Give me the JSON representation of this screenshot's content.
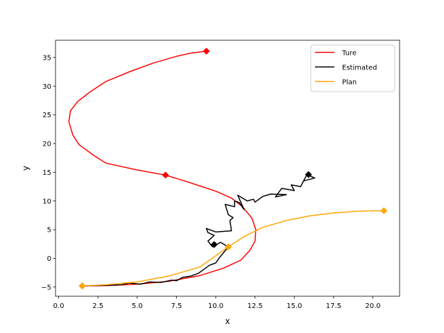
{
  "chart_data": {
    "type": "line",
    "xlabel": "x",
    "ylabel": "y",
    "xlim": [
      -0.2,
      21.7
    ],
    "ylim": [
      -6.6,
      38.0
    ],
    "xticks": [
      0.0,
      2.5,
      5.0,
      7.5,
      10.0,
      12.5,
      15.0,
      17.5,
      20.0
    ],
    "xtick_labels": [
      "0.0",
      "2.5",
      "5.0",
      "7.5",
      "10.0",
      "12.5",
      "15.0",
      "17.5",
      "20.0"
    ],
    "yticks": [
      -5,
      0,
      5,
      10,
      15,
      20,
      25,
      30,
      35
    ],
    "ytick_labels": [
      "−5",
      "0",
      "5",
      "10",
      "15",
      "20",
      "25",
      "30",
      "35"
    ],
    "grid": false,
    "legend_position": "top-right",
    "series": [
      {
        "name": "Ture",
        "color": "#ff0000",
        "points": [
          [
            1.5,
            -4.8
          ],
          [
            3.0,
            -4.75
          ],
          [
            5.0,
            -4.5
          ],
          [
            7.0,
            -4.0
          ],
          [
            9.0,
            -3.0
          ],
          [
            10.5,
            -1.7
          ],
          [
            11.6,
            -0.3
          ],
          [
            12.2,
            1.5
          ],
          [
            12.5,
            3.0
          ],
          [
            12.55,
            5.0
          ],
          [
            12.3,
            7.0
          ],
          [
            11.7,
            9.0
          ],
          [
            11.0,
            10.5
          ],
          [
            10.0,
            11.7
          ],
          [
            9.0,
            12.6
          ],
          [
            8.0,
            13.5
          ],
          [
            6.8,
            14.5
          ],
          [
            5.0,
            15.4
          ],
          [
            3.0,
            16.6
          ],
          [
            2.2,
            18.0
          ],
          [
            1.3,
            19.8
          ],
          [
            0.9,
            21.5
          ],
          [
            0.65,
            23.8
          ],
          [
            0.75,
            25.7
          ],
          [
            1.2,
            27.3
          ],
          [
            2.0,
            29.0
          ],
          [
            3.0,
            30.8
          ],
          [
            4.5,
            32.5
          ],
          [
            6.0,
            34.0
          ],
          [
            7.5,
            35.2
          ],
          [
            8.5,
            35.8
          ],
          [
            9.4,
            36.1
          ]
        ],
        "markers": [
          [
            1.5,
            -4.8
          ],
          [
            6.8,
            14.5
          ],
          [
            9.4,
            36.1
          ]
        ]
      },
      {
        "name": "Estimated",
        "color": "#000000",
        "points": [
          [
            1.5,
            -4.8
          ],
          [
            3.0,
            -4.7
          ],
          [
            4.0,
            -4.6
          ],
          [
            4.5,
            -4.3
          ],
          [
            5.2,
            -4.5
          ],
          [
            5.8,
            -4.1
          ],
          [
            6.5,
            -4.2
          ],
          [
            7.2,
            -3.8
          ],
          [
            7.5,
            -3.9
          ],
          [
            7.9,
            -3.3
          ],
          [
            8.4,
            -3.1
          ],
          [
            8.9,
            -2.6
          ],
          [
            9.2,
            -2.0
          ],
          [
            9.6,
            -1.2
          ],
          [
            10.0,
            -0.8
          ],
          [
            10.2,
            0.0
          ],
          [
            10.5,
            1.0
          ],
          [
            10.8,
            2.0
          ],
          [
            10.3,
            2.8
          ],
          [
            9.8,
            2.0
          ],
          [
            9.5,
            3.0
          ],
          [
            9.9,
            4.0
          ],
          [
            9.5,
            4.5
          ],
          [
            9.4,
            5.2
          ],
          [
            10.0,
            4.6
          ],
          [
            11.0,
            4.8
          ],
          [
            10.9,
            6.6
          ],
          [
            11.1,
            7.1
          ],
          [
            10.8,
            7.6
          ],
          [
            10.6,
            9.4
          ],
          [
            11.2,
            9.0
          ],
          [
            11.2,
            10.0
          ],
          [
            11.5,
            9.7
          ],
          [
            11.8,
            8.5
          ],
          [
            11.4,
            11.0
          ],
          [
            12.0,
            10.0
          ],
          [
            12.4,
            10.3
          ],
          [
            12.5,
            9.8
          ],
          [
            13.0,
            10.8
          ],
          [
            13.5,
            11.2
          ],
          [
            14.5,
            11.1
          ],
          [
            13.8,
            10.7
          ],
          [
            14.2,
            12.2
          ],
          [
            15.0,
            11.8
          ],
          [
            14.8,
            12.8
          ],
          [
            15.4,
            12.5
          ],
          [
            15.8,
            14.6
          ],
          [
            16.3,
            14.0
          ],
          [
            15.6,
            13.5
          ]
        ],
        "markers": [
          [
            9.9,
            2.4
          ],
          [
            15.9,
            14.6
          ]
        ]
      },
      {
        "name": "Plan",
        "color": "#ffa500",
        "points": [
          [
            1.5,
            -4.8
          ],
          [
            3.0,
            -4.6
          ],
          [
            5.0,
            -4.1
          ],
          [
            7.0,
            -3.1
          ],
          [
            9.0,
            -1.5
          ],
          [
            10.8,
            2.0
          ],
          [
            11.8,
            3.8
          ],
          [
            13.0,
            5.4
          ],
          [
            14.5,
            6.6
          ],
          [
            16.0,
            7.4
          ],
          [
            17.5,
            7.9
          ],
          [
            19.0,
            8.2
          ],
          [
            20.2,
            8.3
          ],
          [
            20.7,
            8.3
          ]
        ],
        "markers": [
          [
            1.5,
            -4.8
          ],
          [
            10.8,
            2.0
          ],
          [
            20.7,
            8.3
          ]
        ]
      }
    ]
  }
}
